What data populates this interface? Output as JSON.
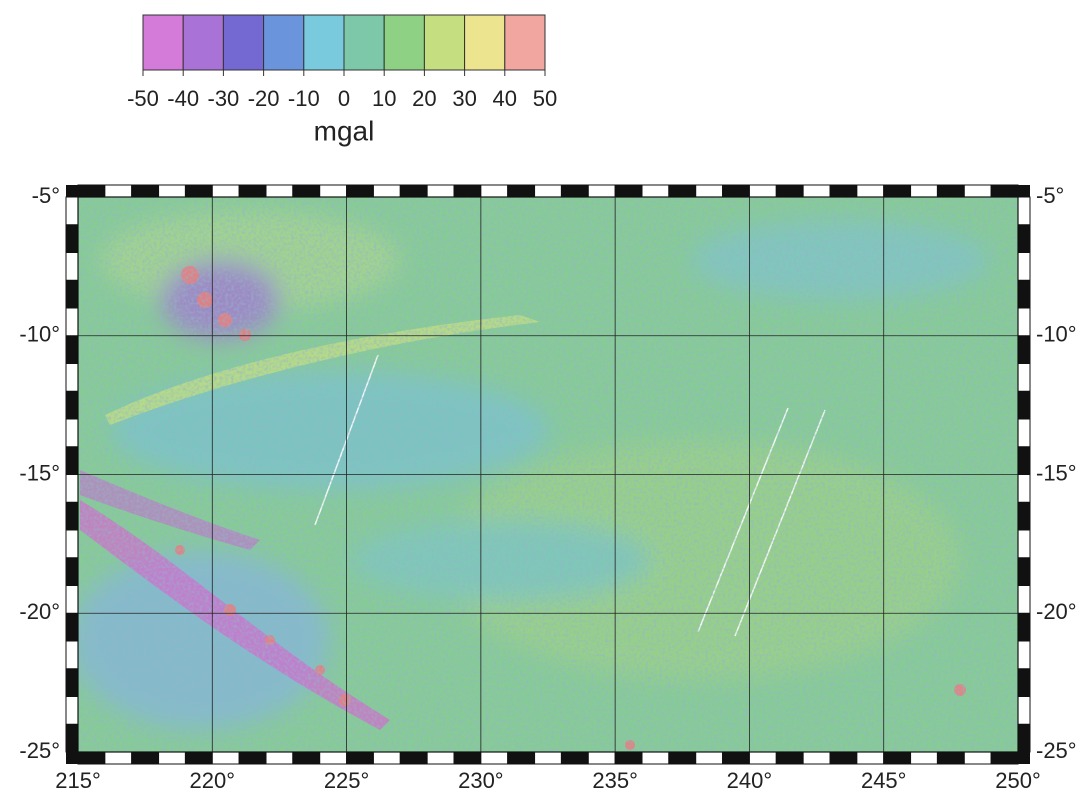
{
  "colorbar": {
    "ticks": [
      -50,
      -40,
      -30,
      -20,
      -10,
      0,
      10,
      20,
      30,
      40,
      50
    ],
    "label": "mgal",
    "colors": [
      "#d47ad8",
      "#a872d6",
      "#7468d2",
      "#6a94dc",
      "#78cadc",
      "#7cc8a8",
      "#8ed084",
      "#c4de80",
      "#ece48e",
      "#f2a6a0"
    ]
  },
  "map": {
    "xlim": [
      215,
      250
    ],
    "ylim": [
      -25,
      -5
    ],
    "grid": true,
    "xticks": [
      {
        "value": 215,
        "label": "215°"
      },
      {
        "value": 220,
        "label": "220°"
      },
      {
        "value": 225,
        "label": "225°"
      },
      {
        "value": 230,
        "label": "230°"
      },
      {
        "value": 235,
        "label": "235°"
      },
      {
        "value": 240,
        "label": "240°"
      },
      {
        "value": 245,
        "label": "245°"
      },
      {
        "value": 250,
        "label": "250°"
      }
    ],
    "yticks": [
      {
        "value": -5,
        "label": "-5°"
      },
      {
        "value": -10,
        "label": "-10°"
      },
      {
        "value": -15,
        "label": "-15°"
      },
      {
        "value": -20,
        "label": "-20°"
      },
      {
        "value": -25,
        "label": "-25°"
      }
    ]
  }
}
